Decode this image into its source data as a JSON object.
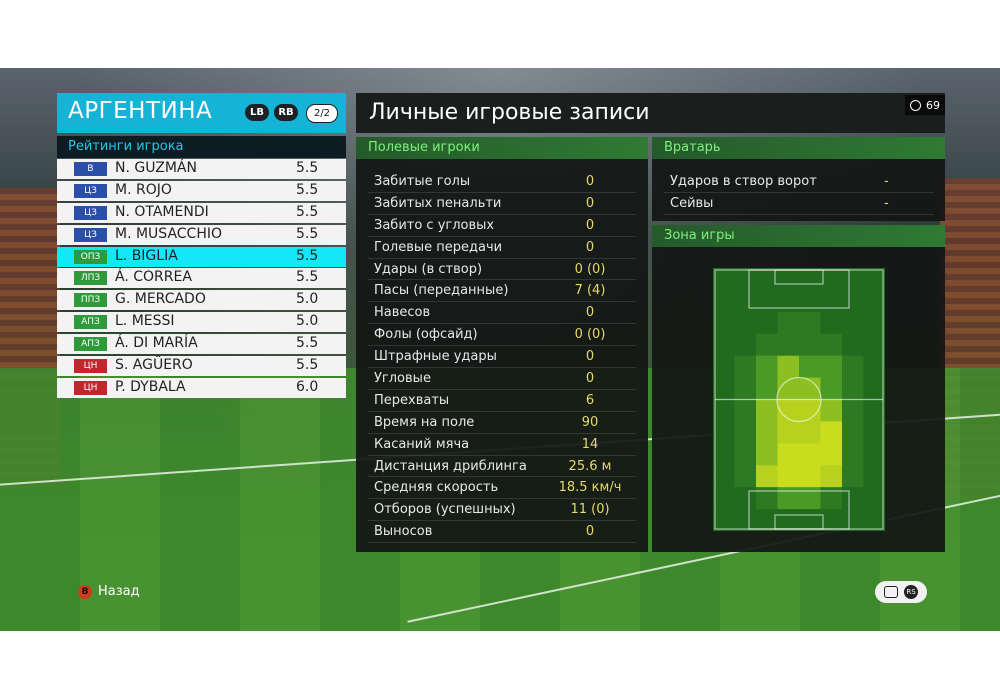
{
  "team": {
    "name": "АРГЕНТИНА",
    "lb_label": "LB",
    "rb_label": "RB",
    "page_indicator": "2/2"
  },
  "ratings_header": "Рейтинги игрока",
  "players": [
    {
      "pos": "В",
      "pos_color": "#2a4fa8",
      "name": "N. GUZMÁN",
      "rating": "5.5"
    },
    {
      "pos": "ЦЗ",
      "pos_color": "#2a4fa8",
      "name": "M. ROJO",
      "rating": "5.5"
    },
    {
      "pos": "ЦЗ",
      "pos_color": "#2a4fa8",
      "name": "N. OTAMENDI",
      "rating": "5.5"
    },
    {
      "pos": "ЦЗ",
      "pos_color": "#2a4fa8",
      "name": "M. MUSACCHIO",
      "rating": "5.5"
    },
    {
      "pos": "ОПЗ",
      "pos_color": "#2f9a3a",
      "name": "L. BIGLIA",
      "rating": "5.5"
    },
    {
      "pos": "ЛПЗ",
      "pos_color": "#2f9a3a",
      "name": "Á. CORREA",
      "rating": "5.5"
    },
    {
      "pos": "ППЗ",
      "pos_color": "#2f9a3a",
      "name": "G. MERCADO",
      "rating": "5.0"
    },
    {
      "pos": "АПЗ",
      "pos_color": "#2f9a3a",
      "name": "L. MESSI",
      "rating": "5.0"
    },
    {
      "pos": "АПЗ",
      "pos_color": "#2f9a3a",
      "name": "Á. DI MARÍA",
      "rating": "5.5"
    },
    {
      "pos": "ЦН",
      "pos_color": "#c0282e",
      "name": "S. AGÜERO",
      "rating": "5.5"
    },
    {
      "pos": "ЦН",
      "pos_color": "#c0282e",
      "name": "P. DYBALA",
      "rating": "6.0"
    }
  ],
  "selected_player_index": 4,
  "main_title": "Личные игровые записи",
  "timer": "69",
  "field_players": {
    "header": "Полевые игроки",
    "stats": [
      {
        "label": "Забитые голы",
        "value": "0"
      },
      {
        "label": "Забитых пенальти",
        "value": "0"
      },
      {
        "label": "Забито с угловых",
        "value": "0"
      },
      {
        "label": "Голевые передачи",
        "value": "0"
      },
      {
        "label": "Удары (в створ)",
        "value": "0 (0)"
      },
      {
        "label": "Пасы (переданные)",
        "value": "7 (4)"
      },
      {
        "label": "Навесов",
        "value": "0"
      },
      {
        "label": "Фолы (офсайд)",
        "value": "0 (0)"
      },
      {
        "label": "Штрафные удары",
        "value": "0"
      },
      {
        "label": "Угловые",
        "value": "0"
      },
      {
        "label": "Перехваты",
        "value": "6"
      },
      {
        "label": "Время на поле",
        "value": "90"
      },
      {
        "label": "Касаний мяча",
        "value": "14"
      },
      {
        "label": "Дистанция дриблинга",
        "value": "25.6 м"
      },
      {
        "label": "Средняя скорость",
        "value": "18.5 км/ч"
      },
      {
        "label": "Отборов (успешных)",
        "value": "11 (0)"
      },
      {
        "label": "Выносов",
        "value": "0"
      }
    ]
  },
  "goalkeeper": {
    "header": "Вратарь",
    "stats": [
      {
        "label": "Ударов в створ ворот",
        "value": "-"
      },
      {
        "label": "Сейвы",
        "value": "-"
      }
    ]
  },
  "zone": {
    "header": "Зона игры",
    "grid_cols": 8,
    "grid_rows": 12,
    "intensity": [
      [
        0,
        0,
        0,
        0,
        0,
        0,
        0,
        0
      ],
      [
        0,
        0,
        0,
        0,
        0,
        0,
        0,
        0
      ],
      [
        0,
        0,
        0,
        1,
        1,
        0,
        0,
        0
      ],
      [
        0,
        0,
        1,
        1,
        1,
        1,
        0,
        0
      ],
      [
        0,
        1,
        2,
        3,
        2,
        2,
        1,
        0
      ],
      [
        0,
        1,
        2,
        3,
        3,
        2,
        1,
        0
      ],
      [
        0,
        1,
        3,
        4,
        4,
        3,
        1,
        0
      ],
      [
        0,
        1,
        3,
        4,
        4,
        5,
        1,
        0
      ],
      [
        0,
        1,
        3,
        5,
        5,
        5,
        1,
        0
      ],
      [
        0,
        1,
        4,
        5,
        5,
        4,
        1,
        0
      ],
      [
        0,
        0,
        1,
        2,
        2,
        1,
        0,
        0
      ],
      [
        0,
        0,
        0,
        0,
        0,
        0,
        0,
        0
      ]
    ],
    "colors": [
      "#216b1f",
      "#2d7a22",
      "#4c9a26",
      "#8cbf22",
      "#b6d21f",
      "#c9dc1e"
    ]
  },
  "footer": {
    "back_key": "B",
    "back_label": "Назад",
    "rs_label": "RS"
  }
}
